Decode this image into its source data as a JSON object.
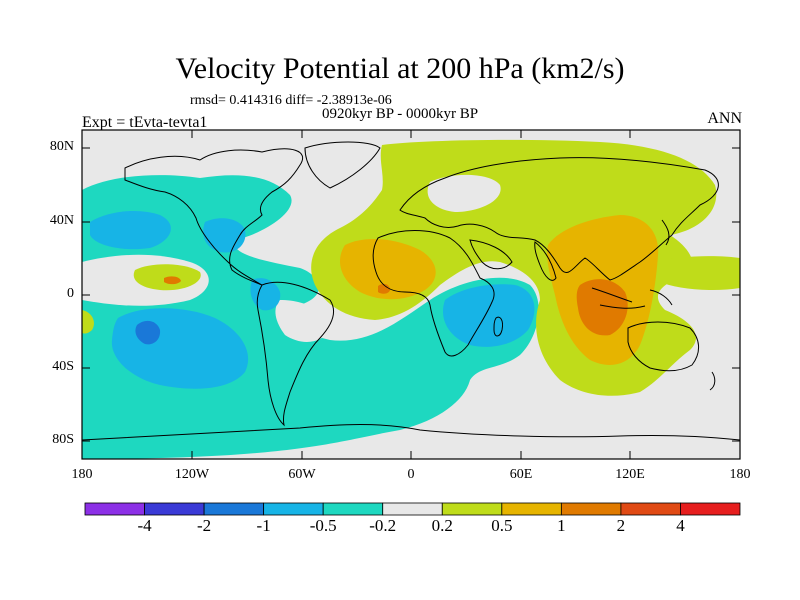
{
  "title": "Velocity Potential at 200 hPa (km2/s)",
  "stats": "rmsd= 0.414316 diff= -2.38913e-06",
  "period": "0920kyr BP - 0000kyr BP",
  "expt": "Expt = tEvta-tevta1",
  "season": "ANN",
  "lat_labels": [
    "80N",
    "40N",
    "0",
    "40S",
    "80S"
  ],
  "lon_labels": [
    "180",
    "120W",
    "60W",
    "0",
    "60E",
    "120E",
    "180"
  ],
  "colorbar": {
    "colors": [
      "#8c30e6",
      "#3a3ad6",
      "#1a78d8",
      "#17b4e6",
      "#1ed8c0",
      "#e8e8e8",
      "#bfdc1a",
      "#e6b400",
      "#e07a00",
      "#e04a14",
      "#e61e1e"
    ],
    "labels": [
      "-4",
      "-2",
      "-1",
      "-0.5",
      "-0.2",
      "0.2",
      "0.5",
      "1",
      "2",
      "4"
    ]
  },
  "map_colors": {
    "neutral": "#e8e8e8",
    "neg02": "#1ed8c0",
    "neg05": "#17b4e6",
    "neg1": "#1a78d8",
    "pos02": "#bfdc1a",
    "pos05": "#e6b400",
    "pos1": "#e07a00"
  }
}
